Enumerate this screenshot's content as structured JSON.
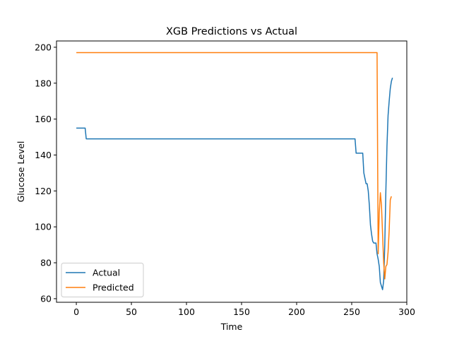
{
  "chart_data": {
    "type": "line",
    "title": "XGB Predictions vs Actual",
    "xlabel": "Time",
    "ylabel": "Glucose Level",
    "xlim": [
      -18,
      300
    ],
    "ylim": [
      58,
      203.5
    ],
    "xticks": [
      0,
      50,
      100,
      150,
      200,
      250,
      300
    ],
    "yticks": [
      60,
      80,
      100,
      120,
      140,
      160,
      180,
      200
    ],
    "grid": false,
    "legend_position": "lower-left",
    "series": [
      {
        "name": "Actual",
        "color": "#1f77b4",
        "points": [
          [
            0,
            155
          ],
          [
            8,
            155
          ],
          [
            9,
            149
          ],
          [
            253,
            149
          ],
          [
            254,
            141
          ],
          [
            256,
            141
          ],
          [
            260,
            141
          ],
          [
            261,
            130
          ],
          [
            262,
            127
          ],
          [
            263,
            124
          ],
          [
            264,
            124
          ],
          [
            265,
            120
          ],
          [
            266,
            112
          ],
          [
            267,
            101
          ],
          [
            268,
            96
          ],
          [
            269,
            92
          ],
          [
            270,
            91
          ],
          [
            272,
            91
          ],
          [
            273,
            85
          ],
          [
            274,
            82
          ],
          [
            275,
            78
          ],
          [
            276,
            69
          ],
          [
            277,
            67
          ],
          [
            278,
            65
          ],
          [
            279,
            70
          ],
          [
            280,
            90
          ],
          [
            281,
            120
          ],
          [
            282,
            145
          ],
          [
            283,
            162
          ],
          [
            284,
            170
          ],
          [
            285,
            177
          ],
          [
            286,
            181
          ],
          [
            287,
            183
          ]
        ]
      },
      {
        "name": "Predicted",
        "color": "#ff7f0e",
        "points": [
          [
            0,
            197
          ],
          [
            273,
            197
          ],
          [
            274,
            85
          ],
          [
            275,
            108
          ],
          [
            276,
            119
          ],
          [
            277,
            112
          ],
          [
            278,
            96
          ],
          [
            279,
            80
          ],
          [
            280,
            71
          ],
          [
            281,
            78
          ],
          [
            282,
            79
          ],
          [
            283,
            86
          ],
          [
            284,
            98
          ],
          [
            285,
            115
          ],
          [
            286,
            117
          ]
        ]
      }
    ]
  }
}
